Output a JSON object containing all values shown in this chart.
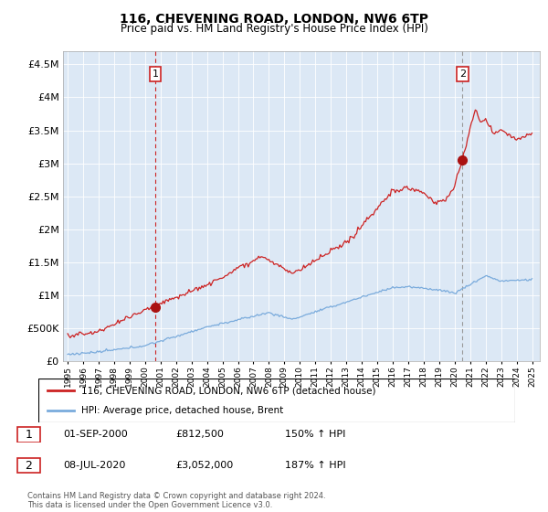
{
  "title": "116, CHEVENING ROAD, LONDON, NW6 6TP",
  "subtitle": "Price paid vs. HM Land Registry's House Price Index (HPI)",
  "ylim": [
    0,
    4700000
  ],
  "yticks": [
    0,
    500000,
    1000000,
    1500000,
    2000000,
    2500000,
    3000000,
    3500000,
    4000000,
    4500000
  ],
  "ytick_labels": [
    "£0",
    "£500K",
    "£1M",
    "£1.5M",
    "£2M",
    "£2.5M",
    "£3M",
    "£3.5M",
    "£4M",
    "£4.5M"
  ],
  "sale1_year": 2000.667,
  "sale1_value": 812500,
  "sale2_year": 2020.5,
  "sale2_value": 3052000,
  "legend_red": "116, CHEVENING ROAD, LONDON, NW6 6TP (detached house)",
  "legend_blue": "HPI: Average price, detached house, Brent",
  "footer": "Contains HM Land Registry data © Crown copyright and database right 2024.\nThis data is licensed under the Open Government Licence v3.0.",
  "background_color": "#ffffff",
  "plot_bg_color": "#dce8f5",
  "grid_color": "#ffffff",
  "red_line_color": "#cc2222",
  "blue_line_color": "#7aabdc",
  "sale_dot_color": "#aa1111",
  "dashed_red_color": "#cc2222",
  "dashed_gray_color": "#999999",
  "xmin": 1994.7,
  "xmax": 2025.5
}
